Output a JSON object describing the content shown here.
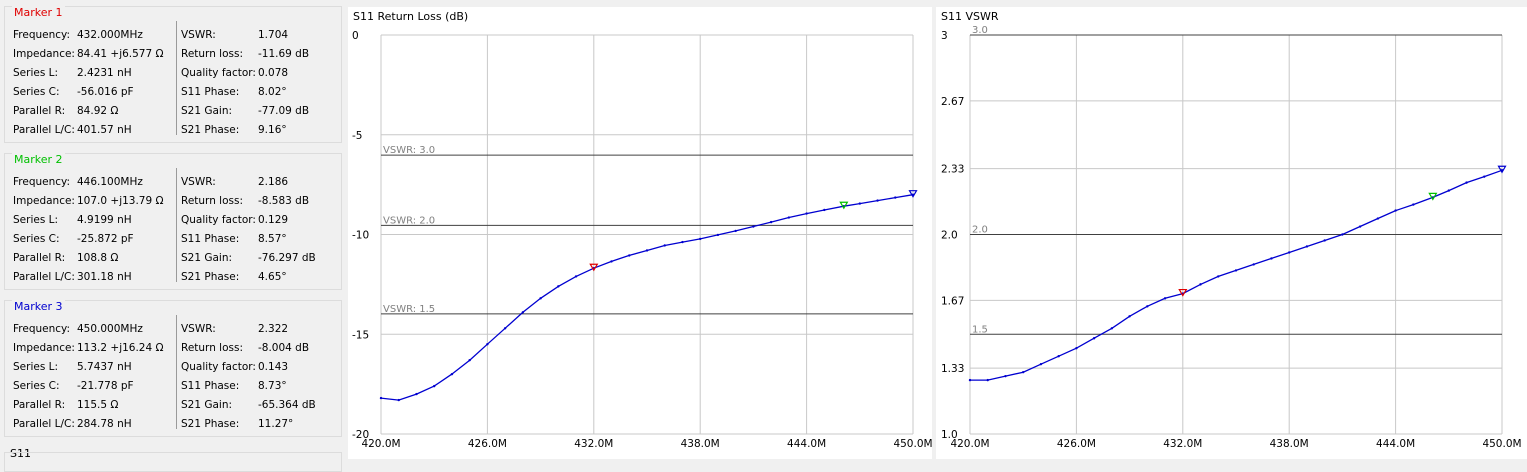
{
  "markers": [
    {
      "title": "Marker 1",
      "color": "#e00000",
      "left": [
        [
          "Frequency:",
          "432.000MHz"
        ],
        [
          "Impedance:",
          "84.41 +j6.577 Ω"
        ],
        [
          "Series L:",
          "2.4231 nH"
        ],
        [
          "Series C:",
          "-56.016 pF"
        ],
        [
          "Parallel R:",
          "84.92 Ω"
        ],
        [
          "Parallel L/C:",
          "401.57 nH"
        ]
      ],
      "right": [
        [
          "VSWR:",
          "1.704"
        ],
        [
          "Return loss:",
          "-11.69 dB"
        ],
        [
          "Quality factor:",
          "0.078"
        ],
        [
          "S11 Phase:",
          "8.02°"
        ],
        [
          "S21 Gain:",
          "-77.09 dB"
        ],
        [
          "S21 Phase:",
          "9.16°"
        ]
      ]
    },
    {
      "title": "Marker 2",
      "color": "#00c000",
      "left": [
        [
          "Frequency:",
          "446.100MHz"
        ],
        [
          "Impedance:",
          "107.0 +j13.79 Ω"
        ],
        [
          "Series L:",
          "4.9199 nH"
        ],
        [
          "Series C:",
          "-25.872 pF"
        ],
        [
          "Parallel R:",
          "108.8 Ω"
        ],
        [
          "Parallel L/C:",
          "301.18 nH"
        ]
      ],
      "right": [
        [
          "VSWR:",
          "2.186"
        ],
        [
          "Return loss:",
          "-8.583 dB"
        ],
        [
          "Quality factor:",
          "0.129"
        ],
        [
          "S11 Phase:",
          "8.57°"
        ],
        [
          "S21 Gain:",
          "-76.297 dB"
        ],
        [
          "S21 Phase:",
          "4.65°"
        ]
      ]
    },
    {
      "title": "Marker 3",
      "color": "#0000d0",
      "left": [
        [
          "Frequency:",
          "450.000MHz"
        ],
        [
          "Impedance:",
          "113.2 +j16.24 Ω"
        ],
        [
          "Series L:",
          "5.7437 nH"
        ],
        [
          "Series C:",
          "-21.778 pF"
        ],
        [
          "Parallel R:",
          "115.5 Ω"
        ],
        [
          "Parallel L/C:",
          "284.78 nH"
        ]
      ],
      "right": [
        [
          "VSWR:",
          "2.322"
        ],
        [
          "Return loss:",
          "-8.004 dB"
        ],
        [
          "Quality factor:",
          "0.143"
        ],
        [
          "S11 Phase:",
          "8.73°"
        ],
        [
          "S21 Gain:",
          "-65.364 dB"
        ],
        [
          "S21 Phase:",
          "11.27°"
        ]
      ]
    }
  ],
  "s11_group_label": "S11",
  "chart_data": [
    {
      "type": "line",
      "title": "S11 Return Loss (dB)",
      "xlim": [
        420.0,
        450.0
      ],
      "ylim": [
        -20,
        0
      ],
      "x_ticks": [
        420,
        426,
        432,
        438,
        444,
        450
      ],
      "x_tick_labels": [
        "420.0M",
        "426.0M",
        "432.0M",
        "438.0M",
        "444.0M",
        "450.0M"
      ],
      "y_ticks": [
        0,
        -5,
        -10,
        -15,
        -20
      ],
      "y_tick_labels": [
        "0",
        "-5",
        "-10",
        "-15",
        "-20"
      ],
      "reference_lines": [
        {
          "value": -6.02,
          "label": "VSWR: 3.0"
        },
        {
          "value": -9.54,
          "label": "VSWR: 2.0"
        },
        {
          "value": -13.98,
          "label": "VSWR: 1.5"
        }
      ],
      "series": [
        {
          "color": "#0000d0",
          "x": [
            420,
            421,
            422,
            423,
            424,
            425,
            426,
            427,
            428,
            429,
            430,
            431,
            432,
            433,
            434,
            435,
            436,
            437,
            438,
            439,
            440,
            441,
            442,
            443,
            444,
            445,
            446.1,
            447,
            448,
            449,
            450
          ],
          "y": [
            -18.2,
            -18.3,
            -18.0,
            -17.6,
            -17.0,
            -16.3,
            -15.5,
            -14.7,
            -13.9,
            -13.2,
            -12.6,
            -12.1,
            -11.69,
            -11.35,
            -11.05,
            -10.8,
            -10.55,
            -10.38,
            -10.22,
            -10.02,
            -9.82,
            -9.6,
            -9.38,
            -9.15,
            -8.95,
            -8.77,
            -8.583,
            -8.45,
            -8.3,
            -8.15,
            -8.004
          ]
        }
      ],
      "markers": [
        {
          "x": 432.0,
          "y": -11.69,
          "color": "#e00000"
        },
        {
          "x": 446.1,
          "y": -8.583,
          "color": "#00c000"
        },
        {
          "x": 450.0,
          "y": -8.004,
          "color": "#0000d0"
        }
      ]
    },
    {
      "type": "line",
      "title": "S11 VSWR",
      "xlim": [
        420.0,
        450.0
      ],
      "ylim": [
        1.0,
        3.0
      ],
      "x_ticks": [
        420,
        426,
        432,
        438,
        444,
        450
      ],
      "x_tick_labels": [
        "420.0M",
        "426.0M",
        "432.0M",
        "438.0M",
        "444.0M",
        "450.0M"
      ],
      "y_ticks": [
        3.0,
        2.67,
        2.33,
        2.0,
        1.67,
        1.33,
        1.0
      ],
      "y_tick_labels": [
        "3",
        "2.67",
        "2.33",
        "2.0",
        "1.67",
        "1.33",
        "1.0"
      ],
      "reference_lines": [
        {
          "value": 3.0,
          "label": "3.0"
        },
        {
          "value": 2.0,
          "label": "2.0"
        },
        {
          "value": 1.5,
          "label": "1.5"
        }
      ],
      "series": [
        {
          "color": "#0000d0",
          "x": [
            420,
            421,
            422,
            423,
            424,
            425,
            426,
            427,
            428,
            429,
            430,
            431,
            432,
            433,
            434,
            435,
            436,
            437,
            438,
            439,
            440,
            441,
            442,
            443,
            444,
            445,
            446.1,
            447,
            448,
            449,
            450
          ],
          "y": [
            1.27,
            1.27,
            1.29,
            1.31,
            1.35,
            1.39,
            1.43,
            1.48,
            1.53,
            1.59,
            1.64,
            1.68,
            1.704,
            1.75,
            1.79,
            1.82,
            1.85,
            1.88,
            1.91,
            1.94,
            1.97,
            2.0,
            2.04,
            2.08,
            2.12,
            2.15,
            2.186,
            2.22,
            2.26,
            2.29,
            2.322
          ]
        }
      ],
      "markers": [
        {
          "x": 432.0,
          "y": 1.704,
          "color": "#e00000"
        },
        {
          "x": 446.1,
          "y": 2.186,
          "color": "#00c000"
        },
        {
          "x": 450.0,
          "y": 2.322,
          "color": "#0000d0"
        }
      ]
    }
  ]
}
